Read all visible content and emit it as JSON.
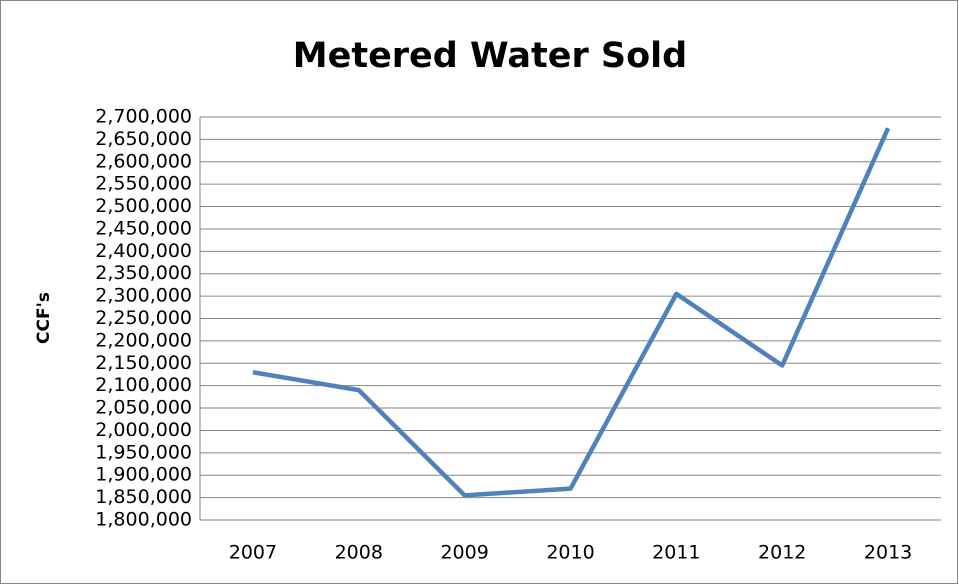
{
  "chart_data": {
    "type": "line",
    "title": "Metered Water Sold",
    "y_label": "CCF's",
    "categories": [
      "2007",
      "2008",
      "2009",
      "2010",
      "2011",
      "2012",
      "2013"
    ],
    "values": [
      2130000,
      2090000,
      1855000,
      1870000,
      2305000,
      2145000,
      2675000
    ],
    "color": "#4f81bd",
    "ylim": [
      1800000,
      2700000
    ],
    "yticks": [
      {
        "value": 1800000,
        "label": "1,800,000"
      },
      {
        "value": 1850000,
        "label": "1,850,000"
      },
      {
        "value": 1900000,
        "label": "1,900,000"
      },
      {
        "value": 1950000,
        "label": "1,950,000"
      },
      {
        "value": 2000000,
        "label": "2,000,000"
      },
      {
        "value": 2050000,
        "label": "2,050,000"
      },
      {
        "value": 2100000,
        "label": "2,100,000"
      },
      {
        "value": 2150000,
        "label": "2,150,000"
      },
      {
        "value": 2200000,
        "label": "2,200,000"
      },
      {
        "value": 2250000,
        "label": "2,250,000"
      },
      {
        "value": 2300000,
        "label": "2,300,000"
      },
      {
        "value": 2350000,
        "label": "2,350,000"
      },
      {
        "value": 2400000,
        "label": "2,400,000"
      },
      {
        "value": 2450000,
        "label": "2,450,000"
      },
      {
        "value": 2500000,
        "label": "2,500,000"
      },
      {
        "value": 2550000,
        "label": "2,550,000"
      },
      {
        "value": 2600000,
        "label": "2,600,000"
      },
      {
        "value": 2650000,
        "label": "2,650,000"
      },
      {
        "value": 2700000,
        "label": "2,700,000"
      }
    ],
    "grid": true
  }
}
